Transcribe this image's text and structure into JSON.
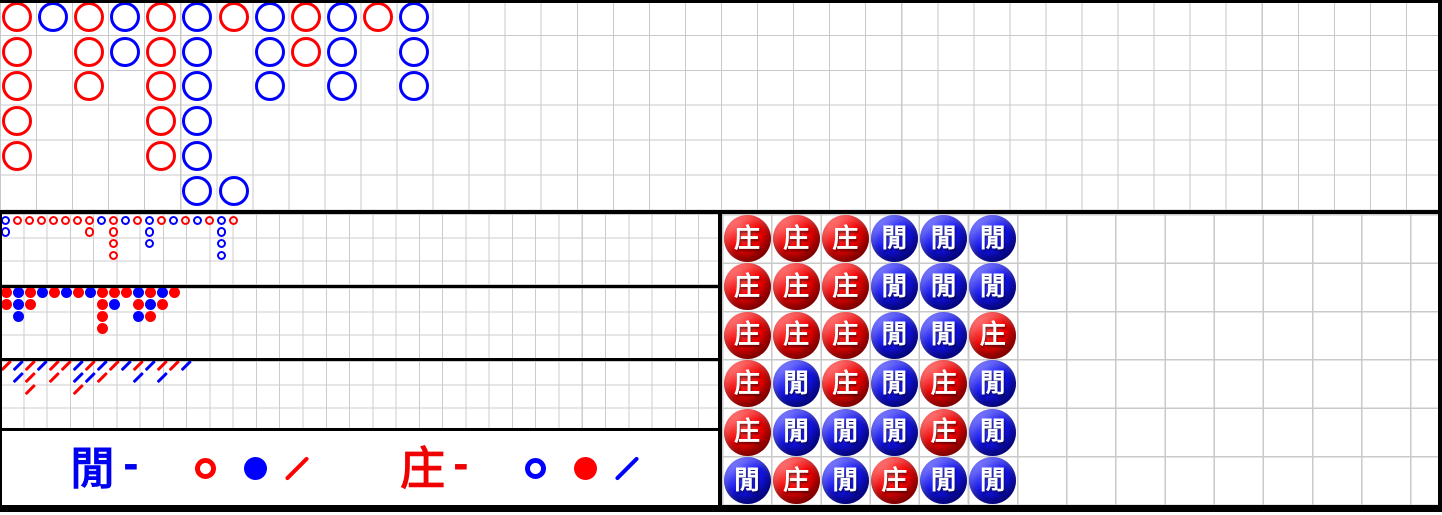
{
  "title": "Baccarat road scoreboard",
  "colors": {
    "red": "#ff0000",
    "blue": "#0000ff",
    "bead_red": "#f40000",
    "bead_blue": "#1414f0",
    "grid_line": "#c9c9c9",
    "border": "#000000",
    "bead_text": "#ffffff"
  },
  "legend": {
    "player": {
      "label": "閒",
      "dash": "-",
      "label_color": "#0000ff",
      "symbols": [
        {
          "icon": "hollow-circle-icon",
          "color": "#ff0000"
        },
        {
          "icon": "solid-circle-icon",
          "color": "#0000ff"
        },
        {
          "icon": "slash-icon",
          "color": "#ff0000"
        }
      ]
    },
    "banker": {
      "label": "庄",
      "dash": "-",
      "label_color": "#ff0000",
      "symbols": [
        {
          "icon": "hollow-circle-icon",
          "color": "#0000ff"
        },
        {
          "icon": "solid-circle-icon",
          "color": "#ff0000"
        },
        {
          "icon": "slash-icon",
          "color": "#0000ff"
        }
      ]
    }
  },
  "big_road": {
    "rows": 6,
    "cols": 40,
    "mark_style": "large-hollow-circle",
    "marks": [
      [
        1,
        1,
        "R"
      ],
      [
        1,
        2,
        "R"
      ],
      [
        1,
        3,
        "R"
      ],
      [
        1,
        4,
        "R"
      ],
      [
        1,
        5,
        "R"
      ],
      [
        2,
        1,
        "B"
      ],
      [
        3,
        1,
        "R"
      ],
      [
        3,
        2,
        "R"
      ],
      [
        3,
        3,
        "R"
      ],
      [
        4,
        1,
        "B"
      ],
      [
        4,
        2,
        "B"
      ],
      [
        5,
        1,
        "R"
      ],
      [
        5,
        2,
        "R"
      ],
      [
        5,
        3,
        "R"
      ],
      [
        5,
        4,
        "R"
      ],
      [
        5,
        5,
        "R"
      ],
      [
        6,
        1,
        "B"
      ],
      [
        6,
        2,
        "B"
      ],
      [
        6,
        3,
        "B"
      ],
      [
        6,
        4,
        "B"
      ],
      [
        6,
        5,
        "B"
      ],
      [
        6,
        6,
        "B"
      ],
      [
        7,
        1,
        "R"
      ],
      [
        7,
        6,
        "B"
      ],
      [
        8,
        1,
        "B"
      ],
      [
        8,
        2,
        "B"
      ],
      [
        8,
        3,
        "B"
      ],
      [
        9,
        1,
        "R"
      ],
      [
        9,
        2,
        "R"
      ],
      [
        10,
        1,
        "B"
      ],
      [
        10,
        2,
        "B"
      ],
      [
        10,
        3,
        "B"
      ],
      [
        11,
        1,
        "R"
      ],
      [
        12,
        1,
        "B"
      ],
      [
        12,
        2,
        "B"
      ],
      [
        12,
        3,
        "B"
      ]
    ]
  },
  "big_eye_road": {
    "rows": 6,
    "mark_style": "small-hollow-circle",
    "marks": [
      [
        1,
        1,
        "B"
      ],
      [
        1,
        2,
        "B"
      ],
      [
        2,
        1,
        "R"
      ],
      [
        3,
        1,
        "R"
      ],
      [
        4,
        1,
        "R"
      ],
      [
        5,
        1,
        "R"
      ],
      [
        6,
        1,
        "R"
      ],
      [
        7,
        1,
        "R"
      ],
      [
        8,
        1,
        "R"
      ],
      [
        8,
        2,
        "R"
      ],
      [
        9,
        1,
        "B"
      ],
      [
        10,
        1,
        "R"
      ],
      [
        10,
        2,
        "R"
      ],
      [
        10,
        3,
        "R"
      ],
      [
        10,
        4,
        "R"
      ],
      [
        11,
        1,
        "B"
      ],
      [
        12,
        1,
        "R"
      ],
      [
        13,
        1,
        "B"
      ],
      [
        13,
        2,
        "B"
      ],
      [
        13,
        3,
        "B"
      ],
      [
        14,
        1,
        "R"
      ],
      [
        15,
        1,
        "B"
      ],
      [
        16,
        1,
        "R"
      ],
      [
        17,
        1,
        "B"
      ],
      [
        18,
        1,
        "R"
      ],
      [
        19,
        1,
        "B"
      ],
      [
        19,
        2,
        "B"
      ],
      [
        19,
        3,
        "B"
      ],
      [
        19,
        4,
        "B"
      ],
      [
        20,
        1,
        "R"
      ]
    ]
  },
  "small_road": {
    "rows": 6,
    "mark_style": "small-solid-circle",
    "marks": [
      [
        1,
        1,
        "R"
      ],
      [
        2,
        1,
        "B"
      ],
      [
        3,
        1,
        "R"
      ],
      [
        4,
        1,
        "B"
      ],
      [
        5,
        1,
        "R"
      ],
      [
        6,
        1,
        "B"
      ],
      [
        7,
        1,
        "R"
      ],
      [
        8,
        1,
        "B"
      ],
      [
        9,
        1,
        "R"
      ],
      [
        10,
        1,
        "R"
      ],
      [
        11,
        1,
        "R"
      ],
      [
        12,
        1,
        "B"
      ],
      [
        13,
        1,
        "R"
      ],
      [
        14,
        1,
        "B"
      ],
      [
        15,
        1,
        "R"
      ],
      [
        1,
        2,
        "R"
      ],
      [
        2,
        2,
        "B"
      ],
      [
        3,
        2,
        "R"
      ],
      [
        9,
        2,
        "R"
      ],
      [
        10,
        2,
        "B"
      ],
      [
        12,
        2,
        "R"
      ],
      [
        13,
        2,
        "B"
      ],
      [
        14,
        2,
        "R"
      ],
      [
        2,
        3,
        "B"
      ],
      [
        9,
        3,
        "R"
      ],
      [
        12,
        3,
        "B"
      ],
      [
        13,
        3,
        "R"
      ],
      [
        9,
        4,
        "R"
      ]
    ]
  },
  "cockroach_road": {
    "rows": 6,
    "mark_style": "slash",
    "marks": [
      [
        1,
        1,
        "R"
      ],
      [
        2,
        1,
        "B"
      ],
      [
        3,
        1,
        "R"
      ],
      [
        4,
        1,
        "B"
      ],
      [
        5,
        1,
        "R"
      ],
      [
        6,
        1,
        "R"
      ],
      [
        7,
        1,
        "B"
      ],
      [
        8,
        1,
        "R"
      ],
      [
        9,
        1,
        "B"
      ],
      [
        10,
        1,
        "R"
      ],
      [
        11,
        1,
        "B"
      ],
      [
        12,
        1,
        "R"
      ],
      [
        13,
        1,
        "B"
      ],
      [
        14,
        1,
        "R"
      ],
      [
        15,
        1,
        "R"
      ],
      [
        16,
        1,
        "B"
      ],
      [
        2,
        2,
        "B"
      ],
      [
        3,
        2,
        "R"
      ],
      [
        5,
        2,
        "R"
      ],
      [
        7,
        2,
        "B"
      ],
      [
        8,
        2,
        "B"
      ],
      [
        9,
        2,
        "R"
      ],
      [
        12,
        2,
        "B"
      ],
      [
        14,
        2,
        "B"
      ],
      [
        3,
        3,
        "R"
      ],
      [
        7,
        3,
        "R"
      ]
    ]
  },
  "bead_plate": {
    "rows": 6,
    "cols": 14,
    "banker_char": "庄",
    "player_char": "閒",
    "beads": [
      [
        "庄",
        "庄",
        "庄",
        "閒",
        "閒",
        "閒"
      ],
      [
        "庄",
        "庄",
        "庄",
        "閒",
        "閒",
        "閒"
      ],
      [
        "庄",
        "庄",
        "庄",
        "閒",
        "閒",
        "庄"
      ],
      [
        "庄",
        "閒",
        "庄",
        "閒",
        "庄",
        "閒"
      ],
      [
        "庄",
        "閒",
        "閒",
        "閒",
        "庄",
        "閒"
      ],
      [
        "閒",
        "庄",
        "閒",
        "庄",
        "閒",
        "閒"
      ]
    ]
  }
}
